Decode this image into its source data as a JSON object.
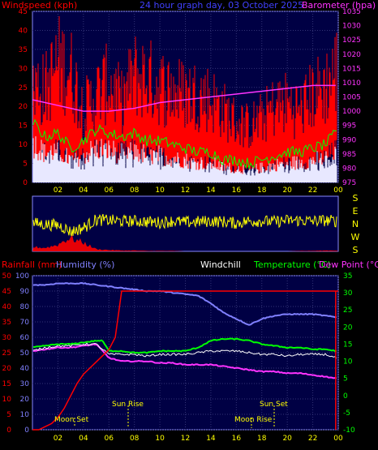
{
  "header": {
    "windspeed_label": "Windspeed (kph)",
    "title": "24 hour graph day, 03 October 2025",
    "barometer_label": "Barometer (hpa)"
  },
  "colors": {
    "background": "#000000",
    "plot_bg": "#000044",
    "wind_gust": "#ff0000",
    "wind_avg": "#00ff00",
    "wind_bg": "#e8e8ff",
    "barometer": "#ff33ff",
    "direction": "#ffff00",
    "rain": "#ff0000",
    "humidity": "#8080ff",
    "windchill": "#ffffff",
    "temperature": "#00ff00",
    "dewpoint": "#ff33ff",
    "axis_left": "#ff0000",
    "axis_right": "#ff33ff",
    "axis_humidity": "#8080ff",
    "axis_temp": "#00ff00"
  },
  "legend": {
    "rainfall": "Rainfall (mm)",
    "humidity": "Humidity (%)",
    "windchill": "Windchill",
    "temperature": "Temperature (°C)",
    "dewpoint": "Dew Point (°C)"
  },
  "direction_labels": [
    "S",
    "E",
    "N",
    "W",
    "S"
  ],
  "annotations": {
    "moon_set": "Moon Set",
    "sun_rise": "Sun Rise",
    "sun_set": "Sun Set",
    "moon_rise": "Moon Rise"
  },
  "chart_data": [
    {
      "type": "line",
      "name": "wind-barometer",
      "x_ticks": [
        "02",
        "04",
        "06",
        "08",
        "10",
        "12",
        "14",
        "16",
        "18",
        "20",
        "22",
        "00"
      ],
      "xlim": [
        0,
        24
      ],
      "ylim": [
        0,
        45
      ],
      "y_ticks": [
        0,
        5,
        10,
        15,
        20,
        25,
        30,
        35,
        40,
        45
      ],
      "y2lim": [
        975,
        1035
      ],
      "y2_ticks": [
        975,
        980,
        985,
        990,
        995,
        1000,
        1005,
        1010,
        1015,
        1020,
        1025,
        1030,
        1035
      ],
      "series": [
        {
          "name": "Windspeed gust",
          "x": [
            0,
            1,
            2,
            3,
            4,
            5,
            6,
            7,
            8,
            9,
            10,
            11,
            12,
            13,
            14,
            15,
            16,
            17,
            18,
            19,
            20,
            21,
            22,
            23,
            23.8
          ],
          "y": [
            25,
            23,
            30,
            28,
            18,
            22,
            25,
            20,
            27,
            26,
            24,
            23,
            22,
            22,
            21,
            18,
            15,
            14,
            16,
            19,
            20,
            18,
            22,
            24,
            28
          ]
        },
        {
          "name": "Windspeed average",
          "x": [
            0,
            1,
            2,
            3,
            4,
            5,
            6,
            7,
            8,
            9,
            10,
            11,
            12,
            13,
            14,
            15,
            16,
            17,
            18,
            19,
            20,
            21,
            22,
            23,
            23.8
          ],
          "y": [
            16,
            12,
            13,
            9,
            11,
            14,
            13,
            12,
            13,
            11,
            11,
            10,
            9,
            8,
            8,
            6,
            6,
            5,
            6,
            7,
            8,
            8,
            9,
            10,
            13
          ]
        },
        {
          "name": "Barometer",
          "x": [
            0,
            2,
            4,
            6,
            8,
            10,
            12,
            14,
            16,
            18,
            20,
            22,
            23.8
          ],
          "y": [
            1004,
            1002,
            1000,
            1000,
            1001,
            1003,
            1004,
            1005,
            1006,
            1007,
            1008,
            1009,
            1009
          ]
        }
      ]
    },
    {
      "type": "line",
      "name": "wind-direction",
      "categories": [
        "S",
        "E",
        "N",
        "W",
        "S"
      ],
      "x": [
        0,
        1,
        2,
        2.5,
        3,
        4,
        5,
        6,
        7,
        8,
        9,
        10,
        11,
        12,
        13,
        14,
        15,
        16,
        17,
        18,
        19,
        20,
        21,
        22,
        23,
        23.8
      ],
      "direction_deg": [
        185,
        175,
        170,
        150,
        120,
        150,
        210,
        205,
        200,
        200,
        195,
        190,
        200,
        190,
        195,
        200,
        195,
        185,
        200,
        200,
        195,
        205,
        205,
        200,
        205,
        200
      ],
      "rain_rate": [
        10,
        8,
        15,
        25,
        30,
        20,
        5,
        3,
        2,
        2,
        1,
        1,
        1,
        0,
        0,
        0,
        0,
        0,
        0,
        0,
        0,
        0,
        1,
        1,
        2,
        2
      ]
    },
    {
      "type": "line",
      "name": "rain-humidity-temperature",
      "x_ticks": [
        "02",
        "04",
        "06",
        "08",
        "10",
        "12",
        "14",
        "16",
        "18",
        "20",
        "22",
        "00"
      ],
      "xlim": [
        0,
        24
      ],
      "rain_ticks": [
        0,
        5,
        10,
        15,
        20,
        25,
        30,
        35,
        40,
        45,
        50
      ],
      "humidity_ticks": [
        0,
        10,
        20,
        30,
        40,
        50,
        60,
        70,
        80,
        90,
        100
      ],
      "temp_ticks": [
        -10,
        -5,
        0,
        5,
        10,
        15,
        20,
        25,
        30,
        35
      ],
      "series": [
        {
          "name": "Rainfall",
          "x": [
            0,
            0.5,
            1,
            1.5,
            2,
            2.5,
            3,
            3.5,
            4,
            4.5,
            5,
            5.5,
            6,
            6.5,
            7,
            24
          ],
          "y": [
            0,
            0,
            1,
            2,
            4,
            7,
            11,
            15,
            18,
            20,
            22,
            24,
            26,
            30,
            45,
            45
          ]
        },
        {
          "name": "Humidity",
          "x": [
            0,
            1,
            2,
            3,
            4,
            5,
            6,
            7,
            8,
            9,
            10,
            11,
            12,
            13,
            14,
            15,
            16,
            17,
            18,
            19,
            20,
            21,
            22,
            23,
            23.8
          ],
          "y": [
            94,
            94,
            95,
            95,
            95,
            94,
            93,
            92,
            91,
            90,
            90,
            89,
            88,
            87,
            82,
            76,
            72,
            68,
            72,
            74,
            75,
            75,
            75,
            74,
            73
          ]
        },
        {
          "name": "Temperature",
          "x": [
            0,
            1,
            2,
            3,
            4,
            5,
            5.5,
            6,
            7,
            8,
            9,
            10,
            11,
            12,
            13,
            14,
            15,
            16,
            17,
            18,
            19,
            20,
            21,
            22,
            23,
            23.8
          ],
          "y": [
            14,
            14.5,
            15,
            15,
            15.5,
            16,
            16,
            13,
            13,
            12.5,
            12.5,
            13,
            13,
            13,
            14,
            16,
            16.5,
            16.5,
            16,
            15,
            14.5,
            14,
            14,
            13.5,
            13.5,
            13
          ]
        },
        {
          "name": "Windchill",
          "x": [
            0,
            1,
            2,
            3,
            4,
            5,
            6,
            7,
            8,
            9,
            10,
            11,
            12,
            13,
            14,
            15,
            16,
            17,
            18,
            19,
            20,
            21,
            22,
            23,
            23.8
          ],
          "y": [
            13,
            14,
            14.5,
            14.5,
            15,
            15,
            12,
            12,
            12,
            11.5,
            12,
            12,
            12,
            12.5,
            13,
            13,
            13,
            12.5,
            12,
            12,
            11.5,
            12,
            12,
            12,
            11
          ]
        },
        {
          "name": "Dew Point",
          "x": [
            0,
            1,
            2,
            3,
            4,
            5,
            6,
            7,
            8,
            9,
            10,
            11,
            12,
            13,
            14,
            15,
            16,
            17,
            18,
            19,
            20,
            21,
            22,
            23,
            23.8
          ],
          "y": [
            13,
            13.5,
            14,
            14,
            14.5,
            15,
            11,
            10,
            10,
            10,
            9.5,
            9.5,
            9,
            9,
            9,
            8.5,
            8,
            7.5,
            7,
            7,
            6.5,
            6.5,
            6,
            5.5,
            5
          ]
        }
      ]
    }
  ]
}
